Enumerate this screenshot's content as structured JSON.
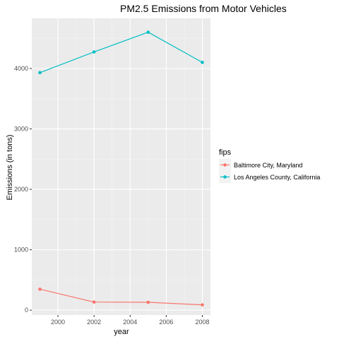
{
  "chart_data": {
    "type": "line",
    "title": "PM2.5 Emissions from Motor Vehicles",
    "xlabel": "year",
    "ylabel": "Emissions (in tons)",
    "x": [
      1999,
      2002,
      2005,
      2008
    ],
    "xlim": [
      1998.55,
      2008.45
    ],
    "ylim": [
      -80,
      4830
    ],
    "x_ticks": [
      2000,
      2002,
      2004,
      2006,
      2008
    ],
    "y_ticks": [
      0,
      1000,
      2000,
      3000,
      4000
    ],
    "grid": true,
    "legend": {
      "title": "fips",
      "placement": "right"
    },
    "series": [
      {
        "name": "Baltimore City, Maryland",
        "color": "#F8766D",
        "values": [
          347,
          134,
          130,
          88
        ]
      },
      {
        "name": "Los Angeles County, California",
        "color": "#00BFC4",
        "values": [
          3931,
          4274,
          4601,
          4101
        ]
      }
    ]
  }
}
